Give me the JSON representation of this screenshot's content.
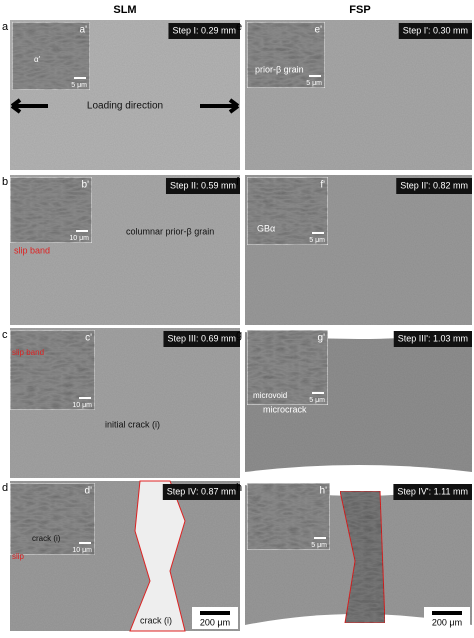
{
  "titles": [
    "SLM",
    "FSP"
  ],
  "panels": [
    {
      "label": "a",
      "step": "Step I: 0.29 mm",
      "inset_label": "a'",
      "inset_scale": "5 μm",
      "annotations": [
        "α'",
        "Loading direction"
      ]
    },
    {
      "label": "b",
      "step": "Step II: 0.59 mm",
      "inset_label": "b'",
      "inset_scale": "10 μm",
      "annotations": [
        "slip band",
        "columnar prior-β grain"
      ]
    },
    {
      "label": "c",
      "step": "Step III: 0.69 mm",
      "inset_label": "c'",
      "inset_scale": "10 μm",
      "annotations": [
        "slip band",
        "initial crack (i)"
      ]
    },
    {
      "label": "d",
      "step": "Step IV: 0.87 mm",
      "inset_label": "d'",
      "inset_scale": "10 μm",
      "annotations": [
        "crack (i)",
        "slip",
        "crack (i)"
      ],
      "scale_bar": "200 μm"
    },
    {
      "label": "e",
      "step": "Step I': 0.30 mm",
      "inset_label": "e'",
      "inset_scale": "5 μm",
      "annotations": [
        "prior-β grain"
      ]
    },
    {
      "label": "f",
      "step": "Step II': 0.82 mm",
      "inset_label": "f'",
      "inset_scale": "5 μm",
      "annotations": [
        "GBα"
      ]
    },
    {
      "label": "g",
      "step": "Step III': 1.03 mm",
      "inset_label": "g'",
      "inset_scale": "5 μm",
      "annotations": [
        "microvoid",
        "microcrack"
      ]
    },
    {
      "label": "h",
      "step": "Step IV': 1.11 mm",
      "inset_label": "h'",
      "inset_scale": "5 μm",
      "annotations": [],
      "scale_bar": "200 μm"
    }
  ]
}
